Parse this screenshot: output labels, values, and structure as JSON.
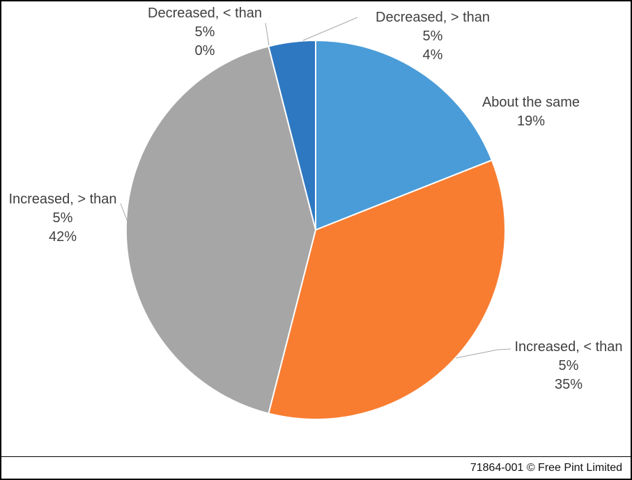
{
  "chart_data": {
    "type": "pie",
    "title": "",
    "unit": "percent",
    "legend_position": "none",
    "start_angle_deg": 0,
    "direction": "clockwise",
    "slices": [
      {
        "label": "About the same",
        "value": 19,
        "color": "#4a9cd8",
        "label_lines": [
          "About the same",
          "19%"
        ]
      },
      {
        "label": "Increased, < than 5%",
        "value": 35,
        "color": "#f87d31",
        "label_lines": [
          "Increased, < than",
          "5%",
          "35%"
        ]
      },
      {
        "label": "Increased, > than 5%",
        "value": 42,
        "color": "#a6a6a6",
        "label_lines": [
          "Increased, > than",
          "5%",
          "42%"
        ]
      },
      {
        "label": "Decreased, < than 5%",
        "value": 0,
        "color": "#ffc000",
        "label_lines": [
          "Decreased, < than",
          "5%",
          "0%"
        ]
      },
      {
        "label": "Decreased, > than 5%",
        "value": 4,
        "color": "#2e78c2",
        "label_lines": [
          "Decreased, > than",
          "5%",
          "4%"
        ]
      }
    ]
  },
  "footer": {
    "text": "71864-001 © Free Pint Limited"
  },
  "colors": {
    "label_text": "#404040",
    "leader_line": "#a6a6a6",
    "slice_border": "#ffffff",
    "frame_border": "#000000",
    "background": "#ffffff"
  }
}
